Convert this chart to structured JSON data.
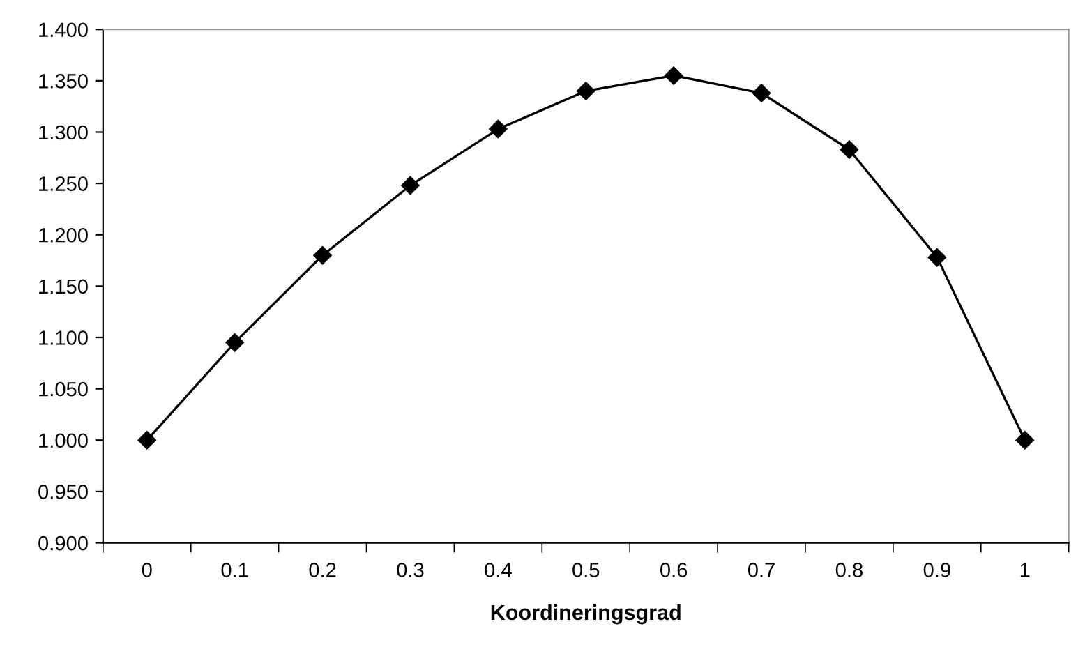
{
  "chart_data": {
    "type": "line",
    "xlabel": "Koordineringsgrad",
    "categories": [
      "0",
      "0.1",
      "0.2",
      "0.3",
      "0.4",
      "0.5",
      "0.6",
      "0.7",
      "0.8",
      "0.9",
      "1"
    ],
    "series": [
      {
        "color": "#000000",
        "values": [
          1.0,
          1.095,
          1.18,
          1.248,
          1.303,
          1.34,
          1.355,
          1.338,
          1.283,
          1.178,
          1.0
        ]
      }
    ],
    "ylim": [
      0.9,
      1.4
    ],
    "yticks": [
      {
        "value": 0.9,
        "label": "0.900"
      },
      {
        "value": 0.95,
        "label": "0.950"
      },
      {
        "value": 1.0,
        "label": "1.000"
      },
      {
        "value": 1.05,
        "label": "1.050"
      },
      {
        "value": 1.1,
        "label": "1.100"
      },
      {
        "value": 1.15,
        "label": "1.150"
      },
      {
        "value": 1.2,
        "label": "1.200"
      },
      {
        "value": 1.25,
        "label": "1.250"
      },
      {
        "value": 1.3,
        "label": "1.300"
      },
      {
        "value": 1.35,
        "label": "1.350"
      },
      {
        "value": 1.4,
        "label": "1.400"
      }
    ],
    "marker": "diamond",
    "line_style": "solid",
    "grid": false,
    "legend": false
  }
}
